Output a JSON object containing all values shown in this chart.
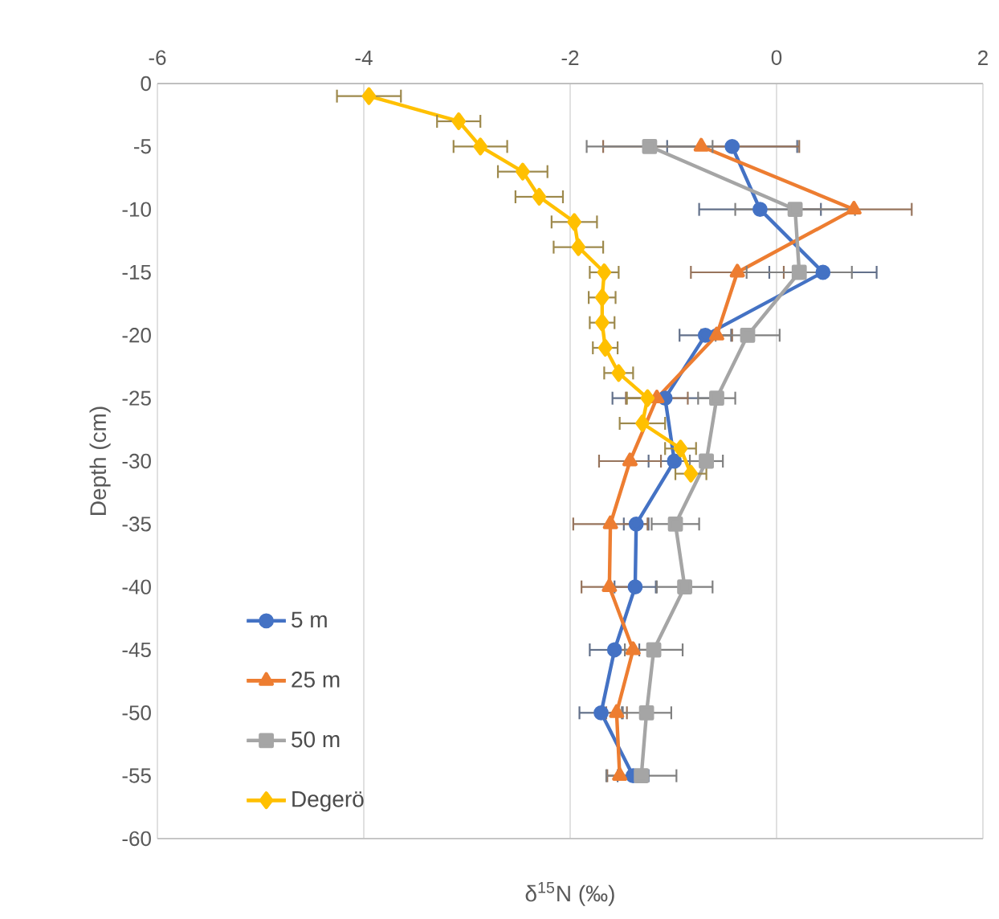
{
  "chart_data": {
    "type": "line",
    "xlabel": "δ$^{15}$N (‰)",
    "ylabel": "Depth (cm)",
    "xlim": [
      -6,
      2
    ],
    "xticks": [
      -6,
      -4,
      -2,
      0,
      2
    ],
    "ylim": [
      -60,
      0
    ],
    "yticks": [
      -60,
      -55,
      -50,
      -45,
      -40,
      -35,
      -30,
      -25,
      -20,
      -15,
      -10,
      -5,
      0
    ],
    "grid": "x",
    "legend": "bottom left",
    "series": [
      {
        "name": "5 m",
        "color": "#4472c4",
        "marker": "circle",
        "x": [
          -0.43,
          -0.16,
          0.45,
          -0.69,
          -1.08,
          -0.99,
          -1.36,
          -1.37,
          -1.57,
          -1.7,
          -1.39
        ],
        "values": [
          -5,
          -10,
          -15,
          -20,
          -25,
          -30,
          -35,
          -40,
          -45,
          -50,
          -55
        ],
        "xerrors": [
          0.63,
          0.59,
          0.52,
          0.25,
          0.51,
          0.25,
          0.12,
          0.2,
          0.24,
          0.21,
          0.15
        ]
      },
      {
        "name": "25 m",
        "color": "#ed7d31",
        "marker": "triangle",
        "x": [
          -0.73,
          0.75,
          -0.38,
          -0.58,
          -1.16,
          -1.42,
          -1.61,
          -1.62,
          -1.39,
          -1.55,
          -1.52
        ],
        "values": [
          -5,
          -10,
          -15,
          -20,
          -25,
          -30,
          -35,
          -40,
          -45,
          -50,
          -55
        ],
        "xerrors": [
          0.95,
          0.56,
          0.45,
          0.15,
          0.3,
          0.3,
          0.36,
          0.27,
          0.15,
          0.1,
          0.12
        ]
      },
      {
        "name": "50 m",
        "color": "#a5a5a5",
        "marker": "square",
        "x": [
          -1.23,
          0.18,
          0.22,
          -0.28,
          -0.58,
          -0.68,
          -0.98,
          -0.89,
          -1.19,
          -1.26,
          -1.31
        ],
        "values": [
          -5,
          -10,
          -15,
          -20,
          -25,
          -30,
          -35,
          -40,
          -45,
          -50,
          -55
        ],
        "xerrors": [
          0.61,
          0.58,
          0.51,
          0.31,
          0.18,
          0.16,
          0.23,
          0.27,
          0.28,
          0.24,
          0.34
        ]
      },
      {
        "name": "Degerö",
        "color": "#ffc000",
        "marker": "diamond",
        "x": [
          -3.95,
          -3.08,
          -2.87,
          -2.46,
          -2.3,
          -1.96,
          -1.92,
          -1.67,
          -1.69,
          -1.69,
          -1.66,
          -1.53,
          -1.25,
          -1.3,
          -0.93,
          -0.83
        ],
        "values": [
          -1,
          -3,
          -5,
          -7,
          -9,
          -11,
          -13,
          -15,
          -17,
          -19,
          -21,
          -23,
          -25,
          -27,
          -29,
          -31
        ],
        "xerrors": [
          0.31,
          0.21,
          0.26,
          0.24,
          0.23,
          0.22,
          0.24,
          0.14,
          0.13,
          0.12,
          0.12,
          0.14,
          0.2,
          0.22,
          0.15,
          0.15
        ]
      }
    ]
  }
}
